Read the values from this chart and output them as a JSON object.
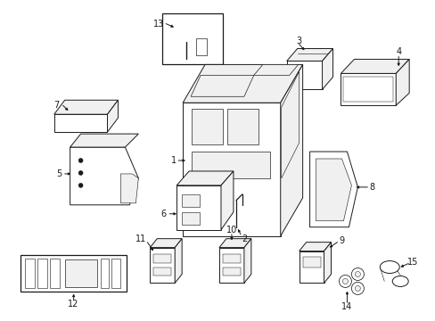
{
  "bg": "#ffffff",
  "lc": "#1a1a1a",
  "lw": 0.7,
  "fig_w": 4.89,
  "fig_h": 3.6,
  "dpi": 100
}
